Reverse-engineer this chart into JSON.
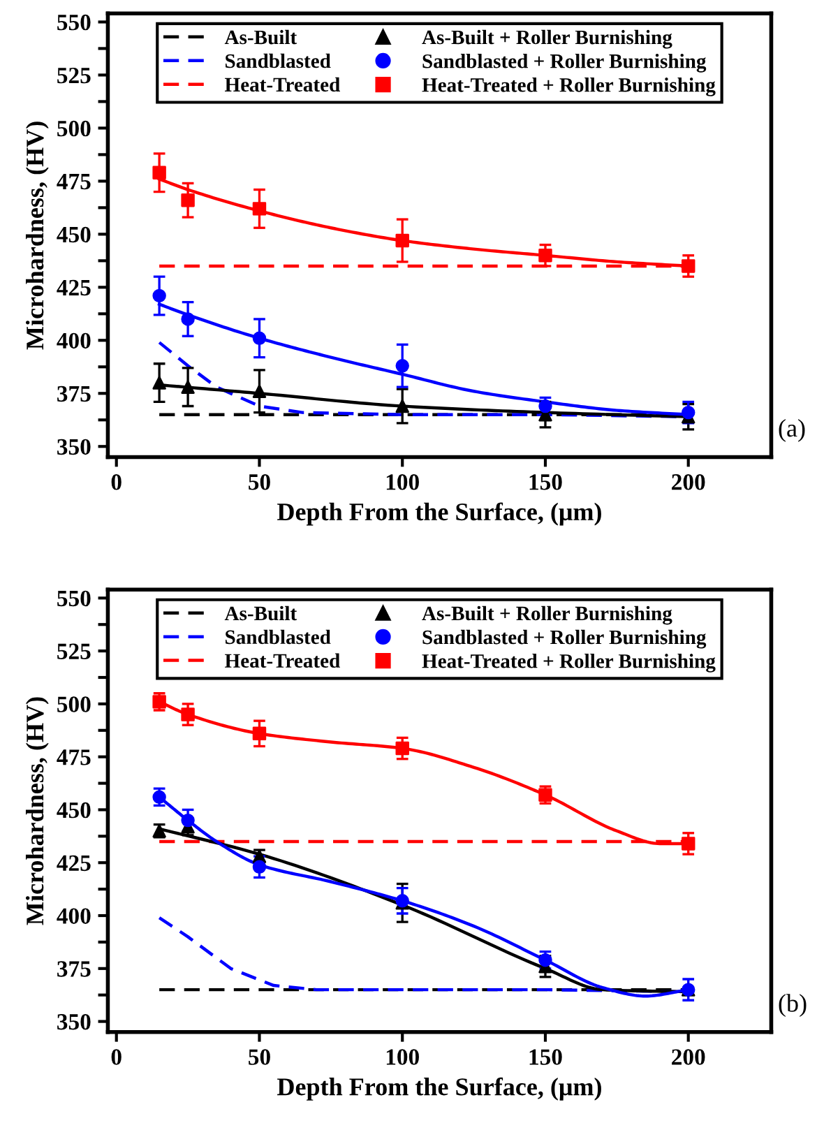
{
  "chart_data": [
    {
      "type": "line",
      "xlabel": "Depth From the Surface, (μm)",
      "ylabel": "Microhardness, (HV)",
      "xlim": [
        -3,
        229
      ],
      "xticks": [
        0,
        50,
        100,
        150,
        200
      ],
      "ylim": [
        345,
        554
      ],
      "yticks": [
        350,
        {
          "value": 362.5,
          "label": null
        },
        375,
        {
          "value": 387.5,
          "label": null
        },
        400,
        {
          "value": 412.5,
          "label": null
        },
        425,
        {
          "value": 437.5,
          "label": null
        },
        450,
        {
          "value": 462.5,
          "label": null
        },
        475,
        {
          "value": 487.5,
          "label": null
        },
        500,
        {
          "value": 512.5,
          "label": null
        },
        525,
        {
          "value": 537.5,
          "label": null
        },
        550
      ],
      "grid": false,
      "legend": "top",
      "annotations": [
        "(a)"
      ],
      "series": [
        {
          "name": "As-Built",
          "line_style": "dashed",
          "marker": "none",
          "color": "#000000",
          "x": [
            15,
            200
          ],
          "values": [
            365,
            365
          ]
        },
        {
          "name": "Sandblasted",
          "line_style": "dashed",
          "marker": "none",
          "color": "#0000ff",
          "x": [
            15,
            25,
            35,
            50,
            65,
            100,
            150,
            200
          ],
          "values": [
            399,
            388,
            378,
            369,
            366,
            365,
            365,
            364
          ]
        },
        {
          "name": "Heat-Treated",
          "line_style": "dashed",
          "marker": "none",
          "color": "#ff0000",
          "x": [
            15,
            200
          ],
          "values": [
            435,
            435
          ]
        },
        {
          "line_style": "solid",
          "marker": "none",
          "color": "#000000",
          "x": [
            15,
            50,
            100,
            150,
            200
          ],
          "values": [
            379,
            375,
            369,
            366,
            364
          ]
        },
        {
          "line_style": "solid",
          "marker": "none",
          "color": "#0000ff",
          "x": [
            15,
            25,
            50,
            75,
            100,
            125,
            150,
            175,
            200
          ],
          "values": [
            417,
            412,
            401,
            392,
            384,
            376,
            371,
            367,
            365
          ]
        },
        {
          "line_style": "solid",
          "marker": "none",
          "color": "#ff0000",
          "x": [
            15,
            25,
            50,
            75,
            100,
            125,
            150,
            175,
            200
          ],
          "values": [
            476,
            471,
            461,
            453,
            447,
            443,
            440,
            437,
            435
          ]
        },
        {
          "name": "As-Built + Roller Burnishing",
          "type": "scatter",
          "marker": "triangle",
          "color": "#000000",
          "x": [
            15,
            25,
            50,
            100,
            150,
            200
          ],
          "values": [
            380,
            378,
            376,
            369,
            365,
            364
          ],
          "errors": [
            9,
            9,
            10,
            8,
            6,
            6
          ]
        },
        {
          "name": "Sandblasted + Roller Burnishing",
          "type": "scatter",
          "marker": "circle",
          "color": "#0000ff",
          "x": [
            15,
            25,
            50,
            100,
            150,
            200
          ],
          "values": [
            421,
            410,
            401,
            388,
            369,
            366
          ],
          "errors": [
            9,
            8,
            9,
            10,
            4,
            5
          ]
        },
        {
          "name": "Heat-Treated + Roller Burnishing",
          "type": "scatter",
          "marker": "square",
          "color": "#ff0000",
          "x": [
            15,
            25,
            50,
            100,
            150,
            200
          ],
          "values": [
            479,
            466,
            462,
            447,
            440,
            435
          ],
          "errors": [
            9,
            8,
            9,
            10,
            5,
            5
          ]
        }
      ]
    },
    {
      "type": "line",
      "xlabel": "Depth From the Surface, (μm)",
      "ylabel": "Microhardness, (HV)",
      "xlim": [
        -3,
        229
      ],
      "xticks": [
        0,
        50,
        100,
        150,
        200
      ],
      "ylim": [
        345,
        554
      ],
      "yticks": [
        350,
        {
          "value": 362.5,
          "label": null
        },
        375,
        {
          "value": 387.5,
          "label": null
        },
        400,
        {
          "value": 412.5,
          "label": null
        },
        425,
        {
          "value": 437.5,
          "label": null
        },
        450,
        {
          "value": 462.5,
          "label": null
        },
        475,
        {
          "value": 487.5,
          "label": null
        },
        500,
        {
          "value": 512.5,
          "label": null
        },
        525,
        {
          "value": 537.5,
          "label": null
        },
        550
      ],
      "grid": false,
      "legend": "top",
      "annotations": [
        "(b)"
      ],
      "series": [
        {
          "name": "As-Built",
          "line_style": "dashed",
          "marker": "none",
          "color": "#000000",
          "x": [
            15,
            200
          ],
          "values": [
            365,
            365
          ]
        },
        {
          "name": "Sandblasted",
          "line_style": "dashed",
          "marker": "none",
          "color": "#0000ff",
          "x": [
            15,
            25,
            40,
            55,
            70,
            100,
            150,
            200
          ],
          "values": [
            399,
            390,
            375,
            367,
            365,
            365,
            365,
            364
          ]
        },
        {
          "name": "Heat-Treated",
          "line_style": "dashed",
          "marker": "none",
          "color": "#ff0000",
          "x": [
            15,
            200
          ],
          "values": [
            435,
            435
          ]
        },
        {
          "line_style": "solid",
          "marker": "none",
          "color": "#000000",
          "x": [
            15,
            50,
            100,
            150,
            170,
            200
          ],
          "values": [
            441,
            429,
            405,
            375,
            365,
            364
          ]
        },
        {
          "line_style": "solid",
          "marker": "none",
          "color": "#0000ff",
          "x": [
            15,
            25,
            35,
            50,
            75,
            100,
            125,
            150,
            170,
            185,
            200
          ],
          "values": [
            456,
            445,
            435,
            424,
            416,
            407,
            395,
            379,
            366,
            362,
            365
          ]
        },
        {
          "line_style": "solid",
          "marker": "none",
          "color": "#ff0000",
          "x": [
            15,
            25,
            50,
            75,
            100,
            125,
            150,
            175,
            190,
            200
          ],
          "values": [
            501,
            495,
            486,
            482,
            479,
            470,
            457,
            440,
            434,
            434
          ]
        },
        {
          "name": "As-Built + Roller Burnishing",
          "type": "scatter",
          "marker": "triangle",
          "color": "#000000",
          "x": [
            15,
            25,
            50,
            100,
            150,
            200
          ],
          "values": [
            440,
            442,
            428,
            406,
            376,
            365
          ],
          "errors": [
            3,
            4,
            3,
            9,
            5,
            null
          ]
        },
        {
          "name": "Sandblasted + Roller Burnishing",
          "type": "scatter",
          "marker": "circle",
          "color": "#0000ff",
          "x": [
            15,
            25,
            50,
            100,
            150,
            200
          ],
          "values": [
            456,
            445,
            423,
            407,
            379,
            365
          ],
          "errors": [
            4,
            5,
            5,
            6,
            4,
            5
          ]
        },
        {
          "name": "Heat-Treated + Roller Burnishing",
          "type": "scatter",
          "marker": "square",
          "color": "#ff0000",
          "x": [
            15,
            25,
            50,
            100,
            150,
            200
          ],
          "values": [
            501,
            495,
            486,
            479,
            457,
            434
          ],
          "errors": [
            4,
            5,
            6,
            5,
            4,
            5
          ]
        }
      ]
    }
  ]
}
